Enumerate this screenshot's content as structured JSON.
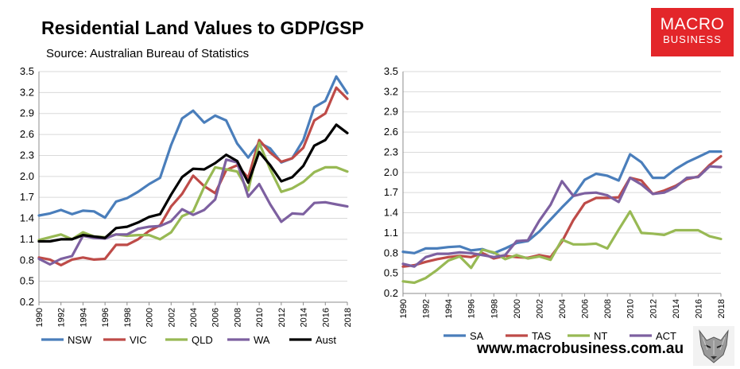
{
  "header": {
    "title": "Residential Land Values to GDP/GSP",
    "subtitle": "Source: Australian Bureau of Statistics"
  },
  "logo": {
    "line1": "MACRO",
    "line2": "BUSINESS",
    "color": "#e3262a"
  },
  "footer": {
    "website": "www.macrobusiness.com.au"
  },
  "chart_data": [
    {
      "type": "line",
      "title": "",
      "x": [
        1990,
        1991,
        1992,
        1993,
        1994,
        1995,
        1996,
        1997,
        1998,
        1999,
        2000,
        2001,
        2002,
        2003,
        2004,
        2005,
        2006,
        2007,
        2008,
        2009,
        2010,
        2011,
        2012,
        2013,
        2014,
        2015,
        2016,
        2017,
        2018
      ],
      "xticks": [
        "1990",
        "1992",
        "1994",
        "1996",
        "1998",
        "2000",
        "2002",
        "2004",
        "2006",
        "2008",
        "2010",
        "2012",
        "2014",
        "2016",
        "2018"
      ],
      "yticks": [
        "0.2",
        "0.5",
        "0.8",
        "1.1",
        "1.4",
        "1.7",
        "2.0",
        "2.3",
        "2.6",
        "2.9",
        "3.2",
        "3.5"
      ],
      "ylim": [
        0.2,
        3.5
      ],
      "grid": true,
      "legend": "bottom",
      "series": [
        {
          "name": "NSW",
          "color": "#4a7ebb",
          "values": [
            1.44,
            1.47,
            1.52,
            1.46,
            1.51,
            1.5,
            1.41,
            1.64,
            1.69,
            1.78,
            1.89,
            1.98,
            2.45,
            2.83,
            2.94,
            2.77,
            2.87,
            2.8,
            2.47,
            2.27,
            2.48,
            2.4,
            2.2,
            2.26,
            2.52,
            2.99,
            3.08,
            3.43,
            3.19
          ]
        },
        {
          "name": "VIC",
          "color": "#be4b48",
          "values": [
            0.84,
            0.81,
            0.73,
            0.81,
            0.84,
            0.81,
            0.82,
            1.02,
            1.02,
            1.1,
            1.22,
            1.3,
            1.57,
            1.75,
            2.01,
            1.86,
            1.76,
            2.09,
            2.16,
            1.98,
            2.52,
            2.34,
            2.21,
            2.26,
            2.41,
            2.8,
            2.9,
            3.27,
            3.11
          ]
        },
        {
          "name": "QLD",
          "color": "#98b954",
          "values": [
            1.09,
            1.13,
            1.17,
            1.1,
            1.2,
            1.14,
            1.13,
            1.17,
            1.15,
            1.16,
            1.16,
            1.1,
            1.2,
            1.43,
            1.5,
            1.85,
            2.13,
            2.1,
            2.07,
            1.8,
            2.48,
            2.1,
            1.78,
            1.83,
            1.92,
            2.06,
            2.13,
            2.13,
            2.07
          ]
        },
        {
          "name": "WA",
          "color": "#7d60a0",
          "values": [
            0.82,
            0.74,
            0.82,
            0.86,
            1.15,
            1.12,
            1.11,
            1.17,
            1.17,
            1.25,
            1.28,
            1.29,
            1.36,
            1.53,
            1.45,
            1.52,
            1.67,
            2.24,
            2.2,
            1.71,
            1.89,
            1.6,
            1.35,
            1.47,
            1.46,
            1.62,
            1.63,
            1.6,
            1.57
          ]
        },
        {
          "name": "Aust",
          "color": "#000000",
          "values": [
            1.07,
            1.07,
            1.1,
            1.1,
            1.16,
            1.14,
            1.12,
            1.26,
            1.28,
            1.34,
            1.42,
            1.46,
            1.74,
            1.99,
            2.11,
            2.1,
            2.19,
            2.31,
            2.22,
            1.91,
            2.35,
            2.16,
            1.93,
            1.99,
            2.15,
            2.44,
            2.52,
            2.74,
            2.62
          ]
        }
      ]
    },
    {
      "type": "line",
      "title": "",
      "x": [
        1990,
        1991,
        1992,
        1993,
        1994,
        1995,
        1996,
        1997,
        1998,
        1999,
        2000,
        2001,
        2002,
        2003,
        2004,
        2005,
        2006,
        2007,
        2008,
        2009,
        2010,
        2011,
        2012,
        2013,
        2014,
        2015,
        2016,
        2017,
        2018
      ],
      "xticks": [
        "1990",
        "1992",
        "1994",
        "1996",
        "1998",
        "2000",
        "2002",
        "2004",
        "2006",
        "2008",
        "2010",
        "2012",
        "2014",
        "2016",
        "2018"
      ],
      "yticks": [
        "0.2",
        "0.5",
        "0.8",
        "1.1",
        "1.4",
        "1.7",
        "2.0",
        "2.3",
        "2.6",
        "2.9",
        "3.2",
        "3.5"
      ],
      "ylim": [
        0.2,
        3.5
      ],
      "grid": true,
      "legend": "bottom",
      "series": [
        {
          "name": "SA",
          "color": "#4a7ebb",
          "values": [
            0.82,
            0.8,
            0.87,
            0.87,
            0.89,
            0.9,
            0.84,
            0.86,
            0.8,
            0.87,
            0.95,
            0.98,
            1.12,
            1.3,
            1.48,
            1.65,
            1.89,
            1.98,
            1.95,
            1.88,
            2.27,
            2.15,
            1.92,
            1.92,
            2.05,
            2.15,
            2.23,
            2.31,
            2.31
          ]
        },
        {
          "name": "TAS",
          "color": "#be4b48",
          "values": [
            0.6,
            0.62,
            0.67,
            0.71,
            0.74,
            0.76,
            0.74,
            0.8,
            0.72,
            0.76,
            0.74,
            0.73,
            0.77,
            0.74,
            0.97,
            1.29,
            1.54,
            1.62,
            1.62,
            1.63,
            1.92,
            1.88,
            1.68,
            1.73,
            1.8,
            1.9,
            1.94,
            2.11,
            2.24
          ]
        },
        {
          "name": "NT",
          "color": "#98b954",
          "values": [
            0.38,
            0.36,
            0.43,
            0.55,
            0.69,
            0.75,
            0.58,
            0.85,
            0.81,
            0.71,
            0.77,
            0.72,
            0.75,
            0.7,
            1.0,
            0.93,
            0.93,
            0.94,
            0.87,
            1.15,
            1.42,
            1.1,
            1.09,
            1.07,
            1.14,
            1.14,
            1.14,
            1.05,
            1.01
          ]
        },
        {
          "name": "ACT",
          "color": "#7d60a0",
          "values": [
            0.64,
            0.6,
            0.74,
            0.79,
            0.79,
            0.81,
            0.8,
            0.77,
            0.74,
            0.77,
            0.98,
            0.99,
            1.28,
            1.52,
            1.87,
            1.65,
            1.69,
            1.7,
            1.66,
            1.56,
            1.92,
            1.82,
            1.68,
            1.7,
            1.78,
            1.92,
            1.93,
            2.09,
            2.08
          ]
        }
      ]
    }
  ]
}
